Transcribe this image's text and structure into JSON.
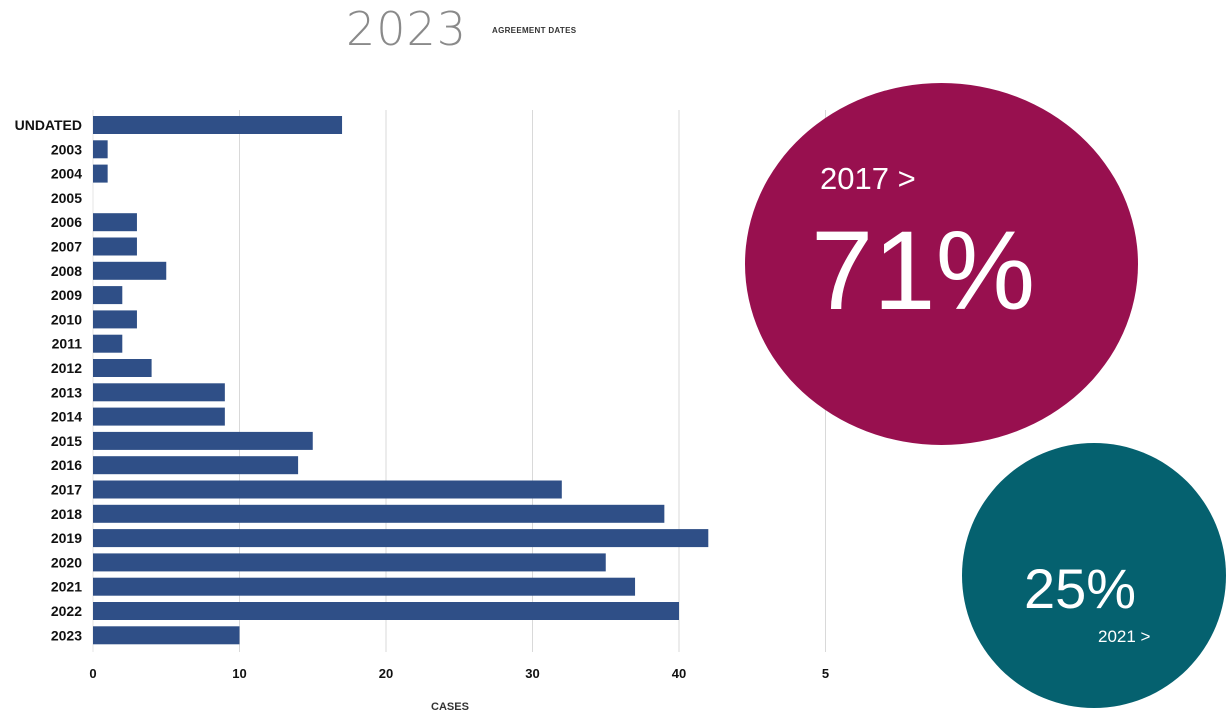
{
  "header": {
    "year": "2023",
    "subtitle": "AGREEMENT DATES"
  },
  "chart_data": {
    "type": "bar",
    "orientation": "horizontal",
    "title": "2023",
    "subtitle": "AGREEMENT DATES",
    "xlabel": "CASES",
    "ylabel": "",
    "xlim": [
      0,
      50
    ],
    "xticks": [
      "0",
      "10",
      "20",
      "30",
      "40",
      "5"
    ],
    "grid": true,
    "categories": [
      "UNDATED",
      "2003",
      "2004",
      "2005",
      "2006",
      "2007",
      "2008",
      "2009",
      "2010",
      "2011",
      "2012",
      "2013",
      "2014",
      "2015",
      "2016",
      "2017",
      "2018",
      "2019",
      "2020",
      "2021",
      "2022",
      "2023"
    ],
    "values": [
      17,
      1,
      1,
      0,
      3,
      3,
      5,
      2,
      3,
      2,
      4,
      9,
      9,
      15,
      14,
      32,
      39,
      42,
      35,
      37,
      40,
      10
    ],
    "bar_color": "#2f4f87"
  },
  "callouts": [
    {
      "from": "2017 >",
      "value": "71%",
      "color": "#98104f"
    },
    {
      "from": "2021 >",
      "value": "25%",
      "color": "#05616f"
    }
  ]
}
